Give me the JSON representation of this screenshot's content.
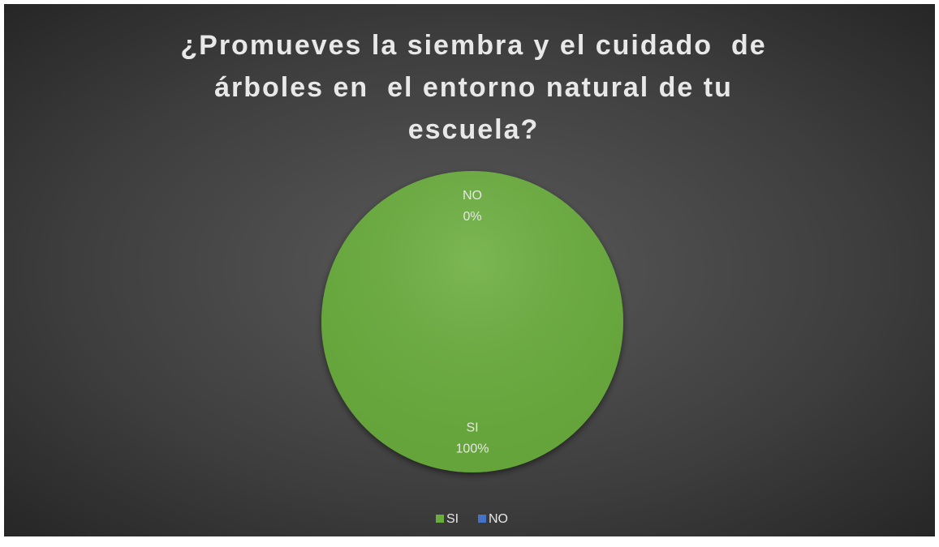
{
  "chart_data": {
    "type": "pie",
    "title": "¿Promueves la siembra y el cuidado  de\nárboles en  el entorno natural de tu\nescuela?",
    "categories": [
      "SI",
      "NO"
    ],
    "values": [
      100,
      0
    ],
    "value_labels": [
      "100%",
      "0%"
    ],
    "colors": [
      "#6aad3d",
      "#4472c4"
    ],
    "legend": "bottom"
  }
}
